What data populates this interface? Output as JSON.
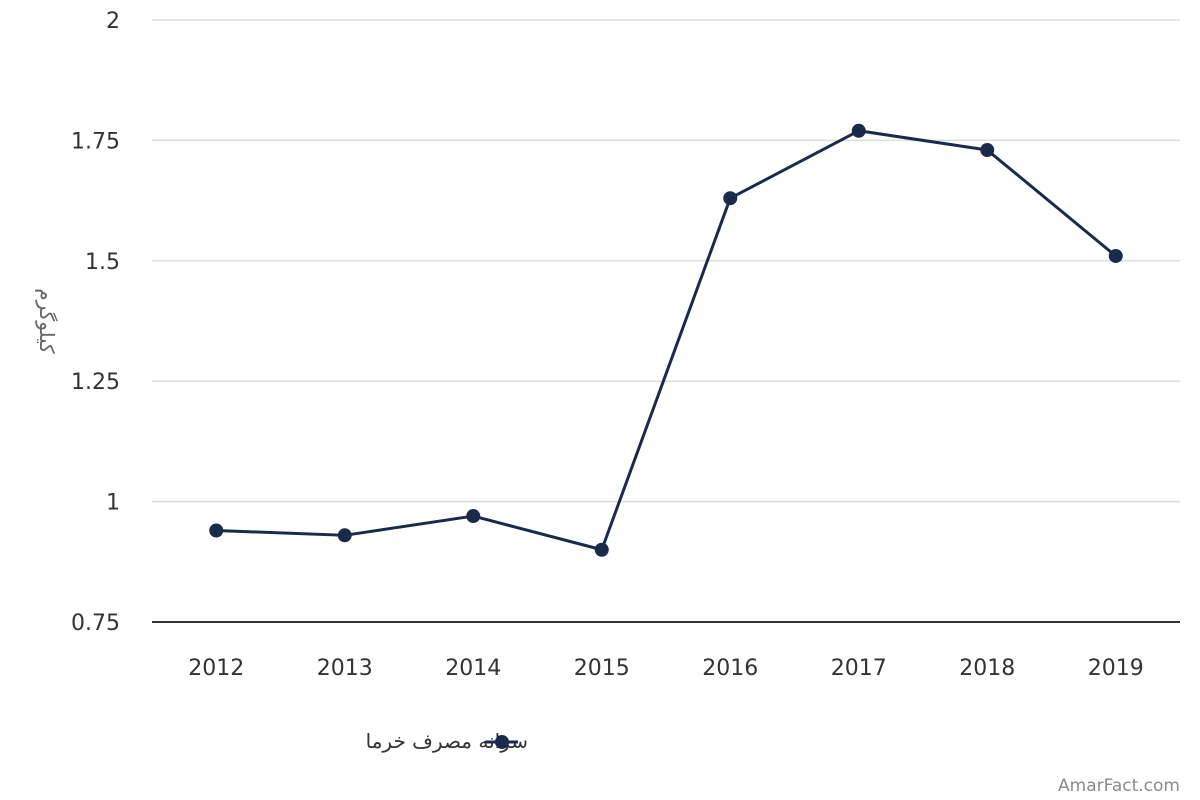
{
  "chart_data": {
    "type": "line",
    "title": "",
    "xlabel": "",
    "ylabel": "کیلوگرم",
    "categories": [
      "2012",
      "2013",
      "2014",
      "2015",
      "2016",
      "2017",
      "2018",
      "2019"
    ],
    "series": [
      {
        "name": "سرانه مصرف خرما",
        "values": [
          0.94,
          0.93,
          0.97,
          0.9,
          1.63,
          1.77,
          1.73,
          1.51
        ],
        "color": "#1a2a4a"
      }
    ],
    "ylim": [
      0.75,
      2
    ],
    "yticks": [
      0.75,
      1,
      1.25,
      1.5,
      1.75,
      2
    ],
    "ytick_labels": [
      "0.75",
      "1",
      "1.25",
      "1.5",
      "1.75",
      "2"
    ],
    "grid": true,
    "legend_position": "bottom-center"
  },
  "watermark": "AmarFact.com",
  "colors": {
    "grid": "#dddddd",
    "axis": "#333333"
  }
}
